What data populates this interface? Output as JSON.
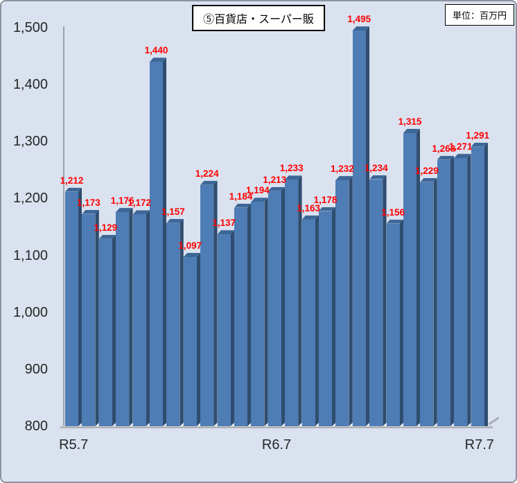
{
  "window": {
    "background": "#DAE2EF",
    "border_color": "#8D939E"
  },
  "header": {
    "title": "⑤百貨店・スーパー販",
    "unit_label": "単位：百万円"
  },
  "chart_data": {
    "type": "bar",
    "title": "⑤百貨店・スーパー販",
    "unit": "百万円",
    "xlabel": "",
    "ylabel": "",
    "ylim": [
      800,
      1500
    ],
    "y_tick_step": 100,
    "y_ticks": [
      1500,
      1400,
      1300,
      1200,
      1100,
      1000,
      900,
      800
    ],
    "x_tick_labels": [
      {
        "label": "R5.7",
        "bar_index": 0
      },
      {
        "label": "R6.7",
        "bar_index": 12
      },
      {
        "label": "R7.7",
        "bar_index": 24
      }
    ],
    "values": [
      1212,
      1173,
      1129,
      1176,
      1172,
      1440,
      1157,
      1097,
      1224,
      1137,
      1184,
      1194,
      1213,
      1233,
      1163,
      1178,
      1232,
      1495,
      1234,
      1156,
      1315,
      1229,
      1268,
      1271,
      1291
    ],
    "grid": false,
    "legend": false,
    "colors": {
      "bar_front": "#4E7CB5",
      "bar_side": "#2F4D6E",
      "bar_top": "#3D6797",
      "data_label": "#FF0000",
      "axis_text": "#262626",
      "axis_line": "#9DA2AA"
    }
  }
}
